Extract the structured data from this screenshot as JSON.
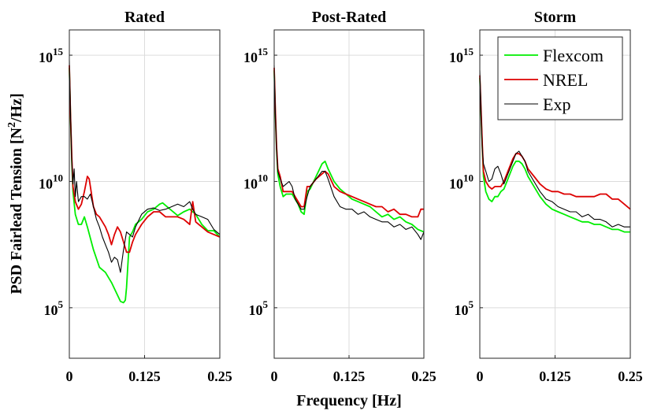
{
  "chart_data": {
    "type": "line",
    "ylabel": "PSD Fairlead Tension [N²/Hz]",
    "xlabel": "Frequency [Hz]",
    "y_scale": "log",
    "xlim": [
      0,
      0.25
    ],
    "ylim_exp": [
      3,
      16
    ],
    "x_ticks": [
      "0",
      "0.125",
      "0.25"
    ],
    "y_ticks": [
      {
        "base": "10",
        "exp": "15",
        "value": 15
      },
      {
        "base": "10",
        "exp": "10",
        "value": 10
      },
      {
        "base": "10",
        "exp": "5",
        "value": 5
      }
    ],
    "grid": true,
    "legend": {
      "placement": "top-right",
      "panel": "Storm",
      "entries": [
        {
          "name": "Flexcom",
          "color": "#00ee00"
        },
        {
          "name": "NREL",
          "color": "#dd0000"
        },
        {
          "name": "Exp",
          "color": "#000000"
        }
      ]
    },
    "panels": [
      {
        "title": "Rated",
        "series": [
          {
            "name": "Flexcom",
            "color": "#00ee00",
            "x": [
              0,
              0.002,
              0.004,
              0.006,
              0.01,
              0.015,
              0.02,
              0.025,
              0.03,
              0.04,
              0.05,
              0.06,
              0.07,
              0.08,
              0.085,
              0.09,
              0.093,
              0.095,
              0.1,
              0.105,
              0.11,
              0.12,
              0.13,
              0.14,
              0.15,
              0.155,
              0.16,
              0.17,
              0.18,
              0.19,
              0.2,
              0.21,
              0.22,
              0.23,
              0.24,
              0.25
            ],
            "y": [
              14.5,
              12.5,
              10.8,
              9.6,
              8.7,
              8.3,
              8.3,
              8.6,
              8.2,
              7.3,
              6.6,
              6.4,
              6.0,
              5.5,
              5.25,
              5.2,
              5.3,
              5.8,
              7.8,
              8.0,
              8.3,
              8.5,
              8.8,
              8.9,
              9.1,
              9.15,
              9.05,
              8.85,
              8.65,
              8.8,
              8.9,
              8.7,
              8.3,
              8.05,
              8.05,
              7.8
            ]
          },
          {
            "name": "NREL",
            "color": "#dd0000",
            "x": [
              0,
              0.002,
              0.004,
              0.006,
              0.01,
              0.015,
              0.02,
              0.025,
              0.03,
              0.033,
              0.035,
              0.04,
              0.045,
              0.05,
              0.055,
              0.06,
              0.065,
              0.07,
              0.075,
              0.08,
              0.085,
              0.09,
              0.095,
              0.1,
              0.105,
              0.11,
              0.12,
              0.13,
              0.14,
              0.15,
              0.16,
              0.17,
              0.18,
              0.19,
              0.2,
              0.205,
              0.21,
              0.22,
              0.23,
              0.24,
              0.25
            ],
            "y": [
              14.6,
              12.6,
              11.0,
              9.8,
              9.2,
              8.9,
              9.1,
              9.6,
              10.2,
              10.1,
              9.8,
              9.0,
              8.7,
              8.6,
              8.4,
              8.2,
              7.9,
              7.5,
              7.9,
              8.2,
              8.0,
              7.6,
              7.2,
              7.2,
              7.6,
              7.9,
              8.3,
              8.6,
              8.8,
              8.8,
              8.6,
              8.6,
              8.6,
              8.5,
              8.3,
              9.2,
              8.4,
              8.2,
              8.0,
              7.9,
              7.8
            ]
          },
          {
            "name": "Exp",
            "color": "#000000",
            "x": [
              0,
              0.002,
              0.004,
              0.006,
              0.008,
              0.01,
              0.012,
              0.015,
              0.02,
              0.025,
              0.03,
              0.035,
              0.04,
              0.045,
              0.05,
              0.055,
              0.06,
              0.065,
              0.07,
              0.075,
              0.08,
              0.085,
              0.09,
              0.095,
              0.1,
              0.105,
              0.11,
              0.12,
              0.13,
              0.14,
              0.15,
              0.16,
              0.17,
              0.18,
              0.19,
              0.2,
              0.205,
              0.21,
              0.22,
              0.23,
              0.24,
              0.25
            ],
            "y": [
              14.8,
              12.7,
              10.8,
              9.9,
              10.5,
              9.4,
              10.0,
              9.2,
              9.4,
              9.4,
              9.3,
              9.5,
              9.0,
              8.5,
              8.2,
              7.8,
              7.5,
              7.2,
              6.8,
              7.0,
              6.9,
              6.4,
              7.3,
              8.0,
              7.9,
              7.8,
              8.2,
              8.7,
              8.9,
              8.95,
              8.85,
              8.9,
              9.0,
              9.1,
              9.0,
              9.2,
              8.9,
              8.7,
              8.6,
              8.5,
              8.1,
              7.9
            ]
          }
        ]
      },
      {
        "title": "Post-Rated",
        "series": [
          {
            "name": "Flexcom",
            "color": "#00ee00",
            "x": [
              0,
              0.002,
              0.004,
              0.006,
              0.01,
              0.015,
              0.02,
              0.03,
              0.04,
              0.045,
              0.05,
              0.055,
              0.06,
              0.07,
              0.08,
              0.085,
              0.09,
              0.1,
              0.11,
              0.12,
              0.13,
              0.14,
              0.15,
              0.16,
              0.17,
              0.18,
              0.19,
              0.2,
              0.21,
              0.22,
              0.23,
              0.24,
              0.25
            ],
            "y": [
              14.4,
              12.6,
              11.3,
              10.3,
              9.8,
              9.4,
              9.5,
              9.5,
              9.1,
              8.8,
              8.7,
              9.6,
              9.7,
              10.2,
              10.7,
              10.8,
              10.5,
              10.0,
              9.7,
              9.5,
              9.3,
              9.2,
              9.1,
              9.0,
              8.8,
              8.6,
              8.7,
              8.5,
              8.6,
              8.4,
              8.3,
              8.1,
              8.0
            ]
          },
          {
            "name": "NREL",
            "color": "#dd0000",
            "x": [
              0,
              0.002,
              0.004,
              0.006,
              0.01,
              0.015,
              0.02,
              0.03,
              0.04,
              0.045,
              0.05,
              0.055,
              0.06,
              0.07,
              0.08,
              0.085,
              0.09,
              0.1,
              0.11,
              0.12,
              0.13,
              0.14,
              0.15,
              0.16,
              0.17,
              0.18,
              0.19,
              0.2,
              0.21,
              0.22,
              0.23,
              0.24,
              0.245,
              0.25
            ],
            "y": [
              14.5,
              12.8,
              11.4,
              10.5,
              10.2,
              9.6,
              9.6,
              9.6,
              9.2,
              9.0,
              9.0,
              9.8,
              9.8,
              10.1,
              10.3,
              10.4,
              10.3,
              9.8,
              9.6,
              9.5,
              9.4,
              9.3,
              9.2,
              9.1,
              9.0,
              9.0,
              8.8,
              8.9,
              8.7,
              8.7,
              8.6,
              8.6,
              8.9,
              8.9
            ]
          },
          {
            "name": "Exp",
            "color": "#000000",
            "x": [
              0,
              0.002,
              0.004,
              0.006,
              0.01,
              0.015,
              0.02,
              0.025,
              0.03,
              0.035,
              0.04,
              0.045,
              0.05,
              0.055,
              0.06,
              0.07,
              0.08,
              0.085,
              0.09,
              0.1,
              0.11,
              0.12,
              0.13,
              0.14,
              0.15,
              0.16,
              0.17,
              0.18,
              0.19,
              0.2,
              0.21,
              0.22,
              0.23,
              0.24,
              0.245,
              0.25
            ],
            "y": [
              14.6,
              12.7,
              11.3,
              10.4,
              10.1,
              9.8,
              9.9,
              10.0,
              9.8,
              9.3,
              9.1,
              8.9,
              8.9,
              9.4,
              9.8,
              10.1,
              10.4,
              10.4,
              10.1,
              9.4,
              9.0,
              8.9,
              8.9,
              8.7,
              8.8,
              8.6,
              8.5,
              8.4,
              8.4,
              8.2,
              8.3,
              8.1,
              8.2,
              7.9,
              7.7,
              8.0
            ]
          }
        ]
      },
      {
        "title": "Storm",
        "series": [
          {
            "name": "Flexcom",
            "color": "#00ee00",
            "x": [
              0,
              0.002,
              0.004,
              0.006,
              0.01,
              0.015,
              0.02,
              0.025,
              0.03,
              0.035,
              0.04,
              0.045,
              0.05,
              0.055,
              0.06,
              0.065,
              0.07,
              0.075,
              0.08,
              0.09,
              0.1,
              0.11,
              0.12,
              0.13,
              0.14,
              0.15,
              0.16,
              0.17,
              0.18,
              0.19,
              0.2,
              0.21,
              0.22,
              0.23,
              0.24,
              0.25
            ],
            "y": [
              14.1,
              12.7,
              11.4,
              10.2,
              9.6,
              9.3,
              9.2,
              9.4,
              9.4,
              9.6,
              9.7,
              10.0,
              10.3,
              10.6,
              10.8,
              10.8,
              10.7,
              10.5,
              10.2,
              9.8,
              9.4,
              9.1,
              8.9,
              8.8,
              8.7,
              8.6,
              8.5,
              8.4,
              8.4,
              8.3,
              8.3,
              8.2,
              8.1,
              8.1,
              8.0,
              8.0
            ]
          },
          {
            "name": "NREL",
            "color": "#dd0000",
            "x": [
              0,
              0.002,
              0.004,
              0.006,
              0.01,
              0.015,
              0.02,
              0.025,
              0.03,
              0.035,
              0.04,
              0.045,
              0.05,
              0.055,
              0.06,
              0.065,
              0.07,
              0.075,
              0.08,
              0.09,
              0.1,
              0.11,
              0.12,
              0.13,
              0.14,
              0.15,
              0.16,
              0.17,
              0.18,
              0.19,
              0.2,
              0.21,
              0.22,
              0.23,
              0.24,
              0.25
            ],
            "y": [
              14.2,
              12.9,
              11.5,
              10.4,
              10.0,
              9.8,
              9.7,
              9.8,
              9.8,
              9.8,
              10.0,
              10.3,
              10.6,
              10.9,
              11.1,
              11.1,
              11.0,
              10.8,
              10.5,
              10.2,
              9.9,
              9.7,
              9.6,
              9.6,
              9.5,
              9.5,
              9.4,
              9.4,
              9.4,
              9.4,
              9.5,
              9.5,
              9.3,
              9.3,
              9.1,
              8.9
            ]
          },
          {
            "name": "Exp",
            "color": "#000000",
            "x": [
              0,
              0.002,
              0.004,
              0.006,
              0.01,
              0.015,
              0.02,
              0.025,
              0.03,
              0.035,
              0.04,
              0.045,
              0.05,
              0.055,
              0.06,
              0.065,
              0.07,
              0.075,
              0.08,
              0.09,
              0.1,
              0.11,
              0.12,
              0.13,
              0.14,
              0.15,
              0.16,
              0.17,
              0.18,
              0.19,
              0.2,
              0.21,
              0.22,
              0.23,
              0.24,
              0.25
            ],
            "y": [
              14.4,
              12.8,
              11.3,
              10.7,
              10.4,
              10.0,
              10.1,
              10.5,
              10.6,
              10.3,
              9.9,
              10.2,
              10.5,
              10.8,
              11.1,
              11.2,
              11.0,
              10.8,
              10.4,
              10.0,
              9.6,
              9.3,
              9.2,
              9.0,
              8.9,
              8.8,
              8.8,
              8.6,
              8.7,
              8.5,
              8.5,
              8.4,
              8.2,
              8.3,
              8.2,
              8.2
            ]
          }
        ]
      }
    ]
  }
}
